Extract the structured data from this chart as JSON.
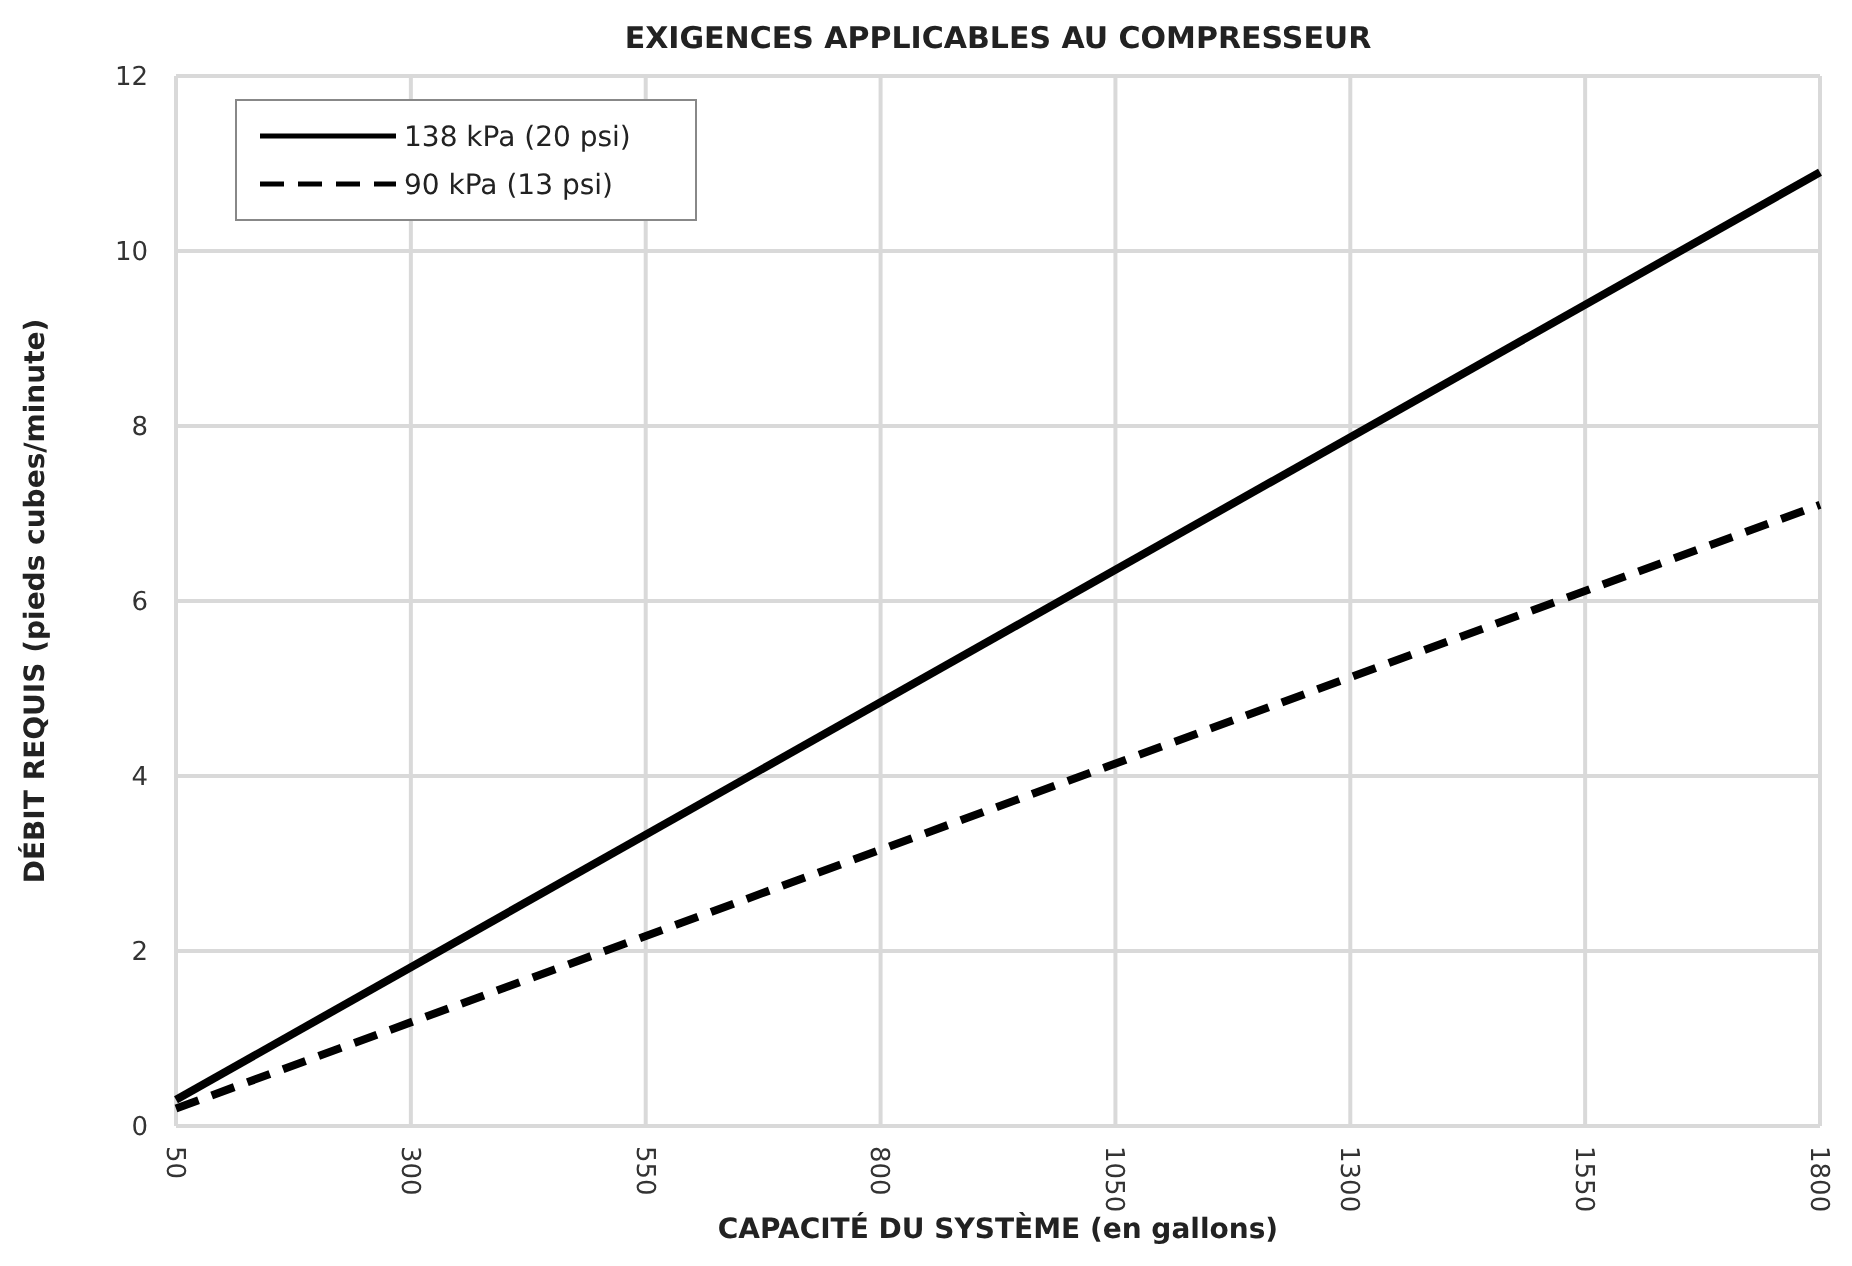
{
  "chart_data": {
    "type": "line",
    "title": "EXIGENCES APPLICABLES AU COMPRESSEUR",
    "xlabel": "CAPACITÉ DU SYSTÈME (en gallons)",
    "ylabel": "DÉBIT REQUIS (pieds cubes/minute)",
    "x": [
      50,
      1800
    ],
    "series": [
      {
        "name": "138 kPa (20 psi)",
        "color": "#000000",
        "values": [
          0.3,
          10.9
        ],
        "line_style": "solid"
      },
      {
        "name": "90 kPa (13 psi)",
        "color": "#000000",
        "values": [
          0.2,
          7.1
        ],
        "line_style": "dashed"
      }
    ],
    "xlim": [
      50,
      1800
    ],
    "xticks": [
      50,
      300,
      550,
      800,
      1050,
      1300,
      1550,
      1800
    ],
    "ylim": [
      0,
      12
    ],
    "yticks": [
      0,
      2,
      4,
      6,
      8,
      10,
      12
    ],
    "grid": true,
    "legend": "top left",
    "marker": "none"
  }
}
